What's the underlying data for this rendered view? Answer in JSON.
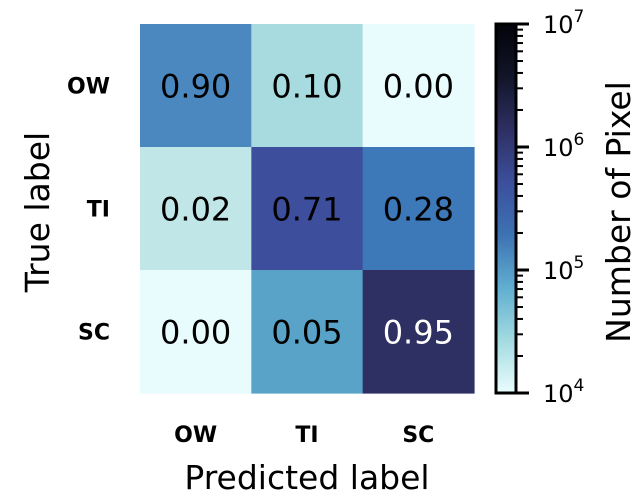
{
  "chart_data": {
    "type": "heatmap",
    "xlabel": "Predicted label",
    "ylabel": "True label",
    "x_categories": [
      "OW",
      "TI",
      "SC"
    ],
    "y_categories": [
      "OW",
      "TI",
      "SC"
    ],
    "values": [
      [
        0.9,
        0.1,
        0.0
      ],
      [
        0.02,
        0.71,
        0.28
      ],
      [
        0.0,
        0.05,
        0.95
      ]
    ],
    "value_labels": [
      [
        "0.90",
        "0.10",
        "0.00"
      ],
      [
        "0.02",
        "0.71",
        "0.28"
      ],
      [
        "0.00",
        "0.05",
        "0.95"
      ]
    ],
    "cell_colors": [
      [
        "#4a88bf",
        "#a8dbdf",
        "#e8fbfd"
      ],
      [
        "#c0e6e8",
        "#3d4e9c",
        "#3d78b8"
      ],
      [
        "#e8fbfd",
        "#58a3c7",
        "#2e2f62"
      ]
    ],
    "text_colors": [
      [
        "#000000",
        "#000000",
        "#000000"
      ],
      [
        "#000000",
        "#000000",
        "#000000"
      ],
      [
        "#000000",
        "#000000",
        "#ffffff"
      ]
    ],
    "colorbar": {
      "label": "Number of Pixel",
      "scale": "log",
      "range": [
        10000,
        10000000
      ],
      "ticks": [
        {
          "value": 10000,
          "base": "10",
          "exp": "4"
        },
        {
          "value": 100000,
          "base": "10",
          "exp": "5"
        },
        {
          "value": 1000000,
          "base": "10",
          "exp": "6"
        },
        {
          "value": 10000000,
          "base": "10",
          "exp": "7"
        }
      ],
      "gradient_stops": [
        "#eafdfe",
        "#a3dbe0",
        "#60aed0",
        "#3d72b3",
        "#3c4f9c",
        "#2e2f62",
        "#121528",
        "#02030a"
      ]
    }
  }
}
